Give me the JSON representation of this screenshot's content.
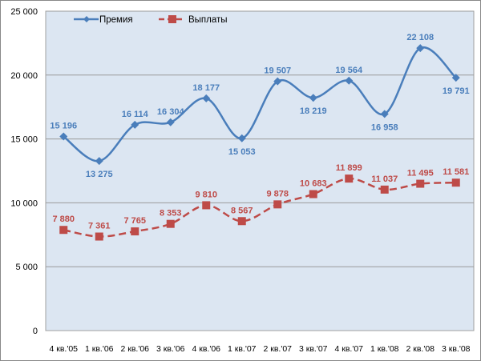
{
  "chart_data": {
    "type": "line",
    "categories": [
      "4 кв.'05",
      "1 кв.'06",
      "2 кв.'06",
      "3 кв.'06",
      "4 кв.'06",
      "1 кв.'07",
      "2 кв.'07",
      "3 кв.'07",
      "4 кв.'07",
      "1 кв.'08",
      "2 кв.'08",
      "3 кв.'08"
    ],
    "series": [
      {
        "name": "Премия",
        "color": "#4a7ebb",
        "marker": "diamond",
        "line": "solid",
        "values": [
          15196,
          13275,
          16114,
          16304,
          18177,
          15053,
          19507,
          18219,
          19564,
          16958,
          22108,
          19791
        ],
        "labels": [
          "15 196",
          "13 275",
          "16 114",
          "16 304",
          "18 177",
          "15 053",
          "19 507",
          "18 219",
          "19 564",
          "16 958",
          "22 108",
          "19 791"
        ]
      },
      {
        "name": "Выплаты",
        "color": "#be4b48",
        "marker": "square",
        "line": "dashed",
        "values": [
          7880,
          7361,
          7765,
          8353,
          9810,
          8567,
          9878,
          10683,
          11899,
          11037,
          11495,
          11581
        ],
        "labels": [
          "7 880",
          "7 361",
          "7 765",
          "8 353",
          "9 810",
          "8 567",
          "9 878",
          "10 683",
          "11 899",
          "11 037",
          "11 495",
          "11 581"
        ]
      }
    ],
    "ylim": [
      0,
      25000
    ],
    "yticks": [
      0,
      5000,
      10000,
      15000,
      20000,
      25000
    ],
    "ytick_labels": [
      "0",
      "5 000",
      "10 000",
      "15 000",
      "20 000",
      "25 000"
    ],
    "grid": "horizontal",
    "legend": "top-left",
    "plot_background": "#dce6f2",
    "smooth": true
  }
}
